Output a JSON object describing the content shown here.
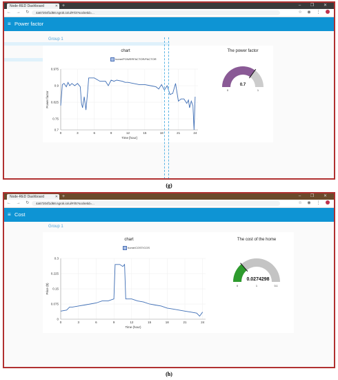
{
  "panels": [
    {
      "browser": {
        "tab_title": "Node-RED Dashboard",
        "url": "4a67204f1d68.ngrok.io/ui/#!/3?socketid=...",
        "new_tab": "+",
        "window_controls": "– ❐ ✕",
        "nav": "← → ↻ ⌂",
        "ext": "☆ ◉ ⋮"
      },
      "header_title": "Power factor",
      "menu_glyph": "≡",
      "group_label": "Group 1",
      "chart_title": "chart",
      "legend": "home/POWERFACTOR/FACTOR",
      "gauge_title": "The power factor",
      "gauge_value": "0.7",
      "gauge_min": "0",
      "gauge_max": "1",
      "colors": {
        "gauge_fill": "#8a5a96",
        "gauge_bg": "#cccccc",
        "line": "#3d6db5"
      },
      "caption": "(g)",
      "chart_data": {
        "type": "line",
        "title": "chart",
        "xlabel": "Time [hour]",
        "ylabel": "Power factor",
        "xlim": [
          0,
          24.5
        ],
        "ylim": [
          0.7,
          0.975
        ],
        "xticks": [
          0,
          3,
          6,
          9,
          12,
          15,
          18,
          21,
          24
        ],
        "yticks": [
          0.7,
          0.75,
          0.825,
          0.9,
          0.975
        ],
        "ytick_labels": [
          "0.7",
          "0.75",
          "0.825",
          "0.9",
          "0.975"
        ],
        "series": [
          {
            "name": "home/POWERFACTOR/FACTOR",
            "x": [
              0,
              0.3,
              0.6,
              1.0,
              1.3,
              1.6,
              2.0,
              2.5,
              3.0,
              3.5,
              3.7,
              3.9,
              4.2,
              4.5,
              4.8,
              5.0,
              5.5,
              6.0,
              7.0,
              8.0,
              8.5,
              9.0,
              9.5,
              10.0,
              11.0,
              11.5,
              12.0,
              13.0,
              14.0,
              15.0,
              16.0,
              17.0,
              17.5,
              18.0,
              18.5,
              19.0,
              19.5,
              20.0,
              20.5,
              21.0,
              21.5,
              22.0,
              22.5,
              22.8,
              23.0,
              23.3,
              23.6,
              23.8,
              24.0
            ],
            "y": [
              0.81,
              0.905,
              0.91,
              0.895,
              0.915,
              0.9,
              0.91,
              0.9,
              0.91,
              0.895,
              0.82,
              0.8,
              0.85,
              0.79,
              0.87,
              0.935,
              0.935,
              0.935,
              0.92,
              0.92,
              0.9,
              0.925,
              0.92,
              0.925,
              0.92,
              0.915,
              0.915,
              0.91,
              0.905,
              0.905,
              0.9,
              0.895,
              0.885,
              0.905,
              0.88,
              0.9,
              0.86,
              0.865,
              0.91,
              0.83,
              0.84,
              0.84,
              0.82,
              0.835,
              0.8,
              0.83,
              0.81,
              0.7,
              0.85
            ]
          }
        ]
      }
    },
    {
      "browser": {
        "tab_title": "Node-RED Dashboard",
        "url": "4a67204f1d68.ngrok.io/ui/#!/5?socketid=...",
        "new_tab": "+",
        "window_controls": "– ❐ ✕",
        "nav": "← → ↻ ⌂",
        "ext": "☆ ◉ ⋮"
      },
      "header_title": "Cost",
      "menu_glyph": "≡",
      "group_label": "Group 1",
      "chart_title": "chart",
      "legend": "home/COST/COS",
      "gauge_title": "The cost of the home",
      "gauge_value": "0.0274298",
      "gauge_min": "0",
      "gauge_mid": "1",
      "gauge_max": "0.1",
      "colors": {
        "gauge_fill": "#2e9b2e",
        "gauge_bg": "#c4c4c4",
        "line": "#3d6db5"
      },
      "caption": "(h)",
      "chart_data": {
        "type": "line",
        "title": "chart",
        "xlabel": "Time (hour)",
        "ylabel": "Price ($)",
        "xlim": [
          0,
          24.5
        ],
        "ylim": [
          0,
          0.3
        ],
        "xticks": [
          0,
          3,
          6,
          9,
          12,
          15,
          18,
          21,
          24
        ],
        "yticks": [
          0,
          0.075,
          0.15,
          0.225,
          0.3
        ],
        "ytick_labels": [
          "0",
          "0.075",
          "0.15",
          "0.225",
          "0.3"
        ],
        "series": [
          {
            "name": "home/COST/COS",
            "x": [
              0,
              1,
              1.5,
              2,
              3,
              4,
              5,
              6,
              7,
              8,
              9,
              9.2,
              10,
              10.5,
              10.8,
              11,
              12,
              13,
              14,
              15,
              16,
              17,
              18,
              19,
              20,
              21,
              22,
              23,
              23.5,
              24
            ],
            "y": [
              0.04,
              0.045,
              0.06,
              0.06,
              0.065,
              0.07,
              0.075,
              0.08,
              0.09,
              0.09,
              0.1,
              0.27,
              0.27,
              0.26,
              0.27,
              0.1,
              0.1,
              0.09,
              0.085,
              0.075,
              0.07,
              0.065,
              0.055,
              0.05,
              0.045,
              0.04,
              0.035,
              0.03,
              0.015,
              0.035
            ]
          }
        ]
      }
    }
  ]
}
